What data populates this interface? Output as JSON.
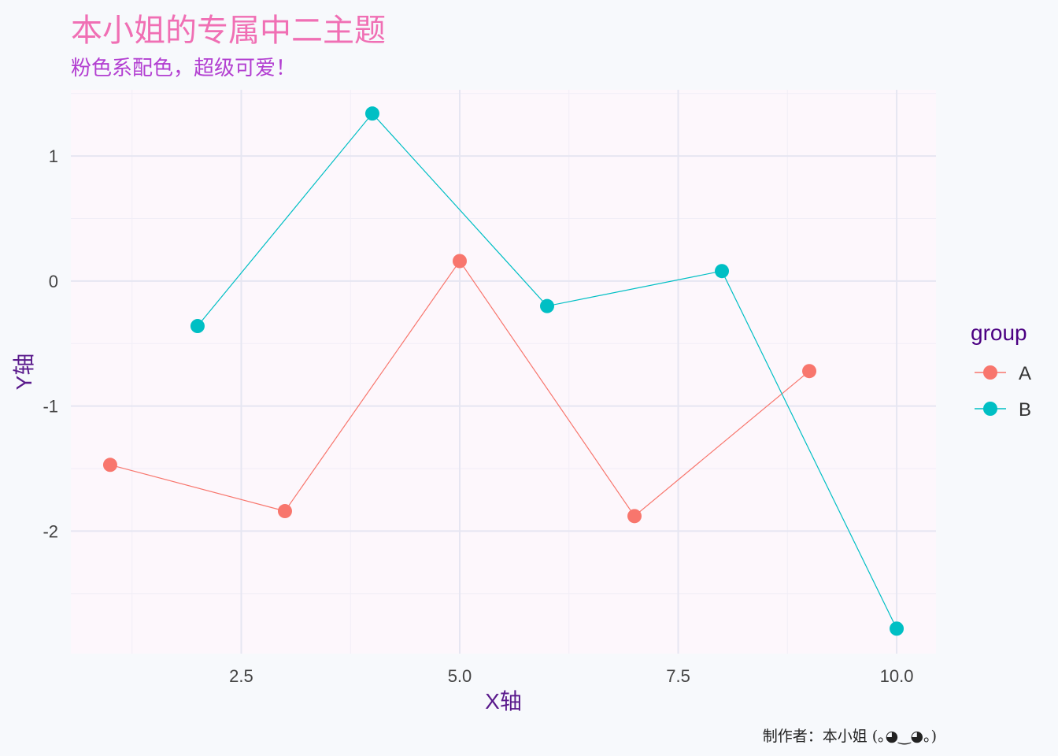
{
  "chart_data": {
    "type": "line",
    "title": "本小姐的专属中二主题",
    "subtitle": "粉色系配色，超级可爱！",
    "caption": "制作者：本小姐 (｡◕‿◕｡)",
    "xlabel": "X轴",
    "ylabel": "Y轴",
    "xlim": [
      0.55,
      10.45
    ],
    "ylim": [
      -2.98,
      1.53
    ],
    "xticks": [
      2.5,
      5.0,
      7.5,
      10.0
    ],
    "xtick_labels": [
      "2.5",
      "5.0",
      "7.5",
      "10.0"
    ],
    "yticks": [
      1,
      0,
      -1,
      -2
    ],
    "ytick_labels": [
      "1",
      "0",
      "-1",
      "-2"
    ],
    "grid": true,
    "legend": {
      "title": "group",
      "position": "right"
    },
    "series": [
      {
        "name": "A",
        "color": "#f8766d",
        "x": [
          1,
          3,
          5,
          7,
          9
        ],
        "y": [
          -1.47,
          -1.84,
          0.16,
          -1.88,
          -0.72
        ]
      },
      {
        "name": "B",
        "color": "#00bfc4",
        "x": [
          2,
          4,
          6,
          8,
          10
        ],
        "y": [
          -0.36,
          1.34,
          -0.2,
          0.08,
          -2.78
        ]
      }
    ]
  },
  "colors": {
    "panel": "#fdf7fc",
    "grid_major": "#e6e6f2",
    "grid_minor": "#f1eef7"
  }
}
